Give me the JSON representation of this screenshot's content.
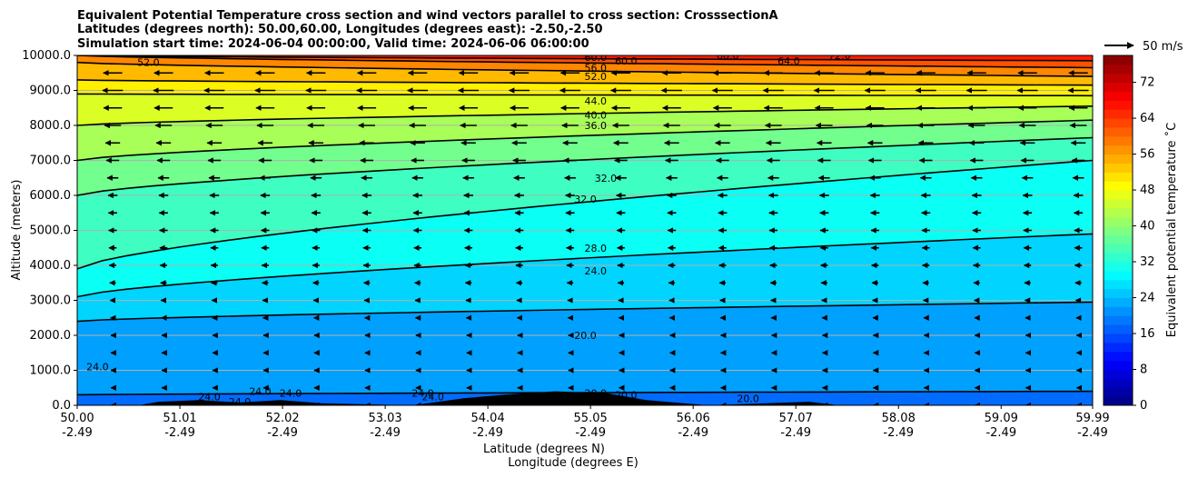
{
  "chart_data": {
    "type": "heatmap",
    "title": [
      "Equivalent Potential Temperature cross section and wind vectors parallel to cross section: CrosssectionA",
      "Latitudes (degrees north): 50.00,60.00, Longitudes (degrees east): -2.50,-2.50",
      "Simulation start time: 2024-06-04 00:00:00, Valid time: 2024-06-06 06:00:00"
    ],
    "ylabel": "Altitude (meters)",
    "xlabel_lat": "Latitude (degrees N)",
    "xlabel_lon": "Longitude (degrees E)",
    "ylim": [
      0,
      10000
    ],
    "xlim": [
      50.0,
      59.99
    ],
    "yticks": [
      "0.0",
      "1000.0",
      "2000.0",
      "3000.0",
      "4000.0",
      "5000.0",
      "6000.0",
      "7000.0",
      "8000.0",
      "9000.0",
      "10000.0"
    ],
    "xticks": [
      {
        "lat": "50.00",
        "lon": "-2.49"
      },
      {
        "lat": "51.01",
        "lon": "-2.49"
      },
      {
        "lat": "52.02",
        "lon": "-2.49"
      },
      {
        "lat": "53.03",
        "lon": "-2.49"
      },
      {
        "lat": "54.04",
        "lon": "-2.49"
      },
      {
        "lat": "55.05",
        "lon": "-2.49"
      },
      {
        "lat": "56.06",
        "lon": "-2.49"
      },
      {
        "lat": "57.07",
        "lon": "-2.49"
      },
      {
        "lat": "58.08",
        "lon": "-2.49"
      },
      {
        "lat": "59.09",
        "lon": "-2.49"
      },
      {
        "lat": "59.99",
        "lon": "-2.49"
      }
    ],
    "grid": "horizontal",
    "colorbar": {
      "label": "Equivalent potential temperature ˚C",
      "ticks": [
        "0",
        "8",
        "16",
        "24",
        "32",
        "40",
        "48",
        "56",
        "64",
        "72"
      ],
      "range": [
        0,
        78
      ],
      "colormap": "jet"
    },
    "quiver_key": {
      "label": "50 m/s"
    },
    "contours": [
      {
        "label": "20.0",
        "level": 20,
        "alt_left": 300,
        "alt_right": 400
      },
      {
        "label": "24.0",
        "level": 24,
        "alt_left": 2400,
        "alt_right": 2950
      },
      {
        "label": "28.0",
        "level": 28,
        "alt_left": 3100,
        "alt_right": 4900
      },
      {
        "label": "32.0",
        "level": 32,
        "alt_left": 3900,
        "alt_right": 7000
      },
      {
        "label": "36.0",
        "level": 36,
        "alt_left": 6000,
        "alt_right": 7650
      },
      {
        "label": "40.0",
        "level": 40,
        "alt_left": 7000,
        "alt_right": 8150
      },
      {
        "label": "44.0",
        "level": 44,
        "alt_left": 8000,
        "alt_right": 8550
      },
      {
        "label": "48.0",
        "level": 48,
        "alt_left": 8900,
        "alt_right": 8850
      },
      {
        "label": "52.0",
        "level": 52,
        "alt_left": 9300,
        "alt_right": 9150
      },
      {
        "label": "56.0",
        "level": 56,
        "alt_left": 9800,
        "alt_right": 9400
      },
      {
        "label": "60.0",
        "level": 60,
        "alt_left": 10000,
        "alt_right": 9650
      },
      {
        "label": "64.0",
        "level": 64,
        "alt_left": 10000,
        "alt_right": 9850
      }
    ],
    "contour_labels_visible": [
      {
        "text": "60.0",
        "lat": 55.1,
        "alt": 9950
      },
      {
        "text": "56.0",
        "lat": 55.1,
        "alt": 9650
      },
      {
        "text": "52.0",
        "lat": 55.1,
        "alt": 9400
      },
      {
        "text": "60.0",
        "lat": 55.4,
        "alt": 9850
      },
      {
        "text": "64.0",
        "lat": 57.0,
        "alt": 9850
      },
      {
        "text": "44.0",
        "lat": 55.1,
        "alt": 8700
      },
      {
        "text": "40.0",
        "lat": 55.1,
        "alt": 8300
      },
      {
        "text": "36.0",
        "lat": 55.1,
        "alt": 8000
      },
      {
        "text": "32.0",
        "lat": 55.2,
        "alt": 6500
      },
      {
        "text": "32.0",
        "lat": 55.0,
        "alt": 5900
      },
      {
        "text": "28.0",
        "lat": 55.1,
        "alt": 4500
      },
      {
        "text": "24.0",
        "lat": 55.1,
        "alt": 3850
      },
      {
        "text": "20.0",
        "lat": 55.0,
        "alt": 2000
      },
      {
        "text": "24.0",
        "lat": 50.2,
        "alt": 1100
      },
      {
        "text": "24.0",
        "lat": 51.8,
        "alt": 400
      },
      {
        "text": "24.0",
        "lat": 52.1,
        "alt": 350
      },
      {
        "text": "24.0",
        "lat": 51.3,
        "alt": 250
      },
      {
        "text": "24.0",
        "lat": 51.6,
        "alt": 100
      },
      {
        "text": "24.0",
        "lat": 53.4,
        "alt": 350
      },
      {
        "text": "24.0",
        "lat": 53.5,
        "alt": 250
      },
      {
        "text": "20.0",
        "lat": 55.1,
        "alt": 350
      },
      {
        "text": "20.0",
        "lat": 55.4,
        "alt": 300
      },
      {
        "text": "20.0",
        "lat": 56.6,
        "alt": 200
      },
      {
        "text": "52.0",
        "lat": 50.7,
        "alt": 9800
      },
      {
        "text": "68.0",
        "lat": 56.4,
        "alt": 10000
      },
      {
        "text": "72.0",
        "lat": 57.5,
        "alt": 10000
      }
    ],
    "wind_vectors": {
      "direction": "toward decreasing latitude",
      "speed_by_altitude": [
        {
          "alt": 0,
          "speed": 4
        },
        {
          "alt": 2000,
          "speed": 6
        },
        {
          "alt": 4000,
          "speed": 12
        },
        {
          "alt": 6000,
          "speed": 16
        },
        {
          "alt": 7500,
          "speed": 25
        },
        {
          "alt": 9000,
          "speed": 35
        },
        {
          "alt": 10000,
          "speed": 30
        }
      ]
    },
    "terrain": [
      {
        "lat": 50.6,
        "alt": 0
      },
      {
        "lat": 50.8,
        "alt": 100
      },
      {
        "lat": 51.2,
        "alt": 150
      },
      {
        "lat": 51.6,
        "alt": 80
      },
      {
        "lat": 52.0,
        "alt": 150
      },
      {
        "lat": 52.4,
        "alt": 60
      },
      {
        "lat": 53.3,
        "alt": 0
      },
      {
        "lat": 53.8,
        "alt": 200
      },
      {
        "lat": 54.2,
        "alt": 300
      },
      {
        "lat": 54.7,
        "alt": 400
      },
      {
        "lat": 55.2,
        "alt": 350
      },
      {
        "lat": 55.6,
        "alt": 150
      },
      {
        "lat": 56.2,
        "alt": 0
      },
      {
        "lat": 57.2,
        "alt": 100
      },
      {
        "lat": 57.5,
        "alt": 0
      }
    ]
  }
}
